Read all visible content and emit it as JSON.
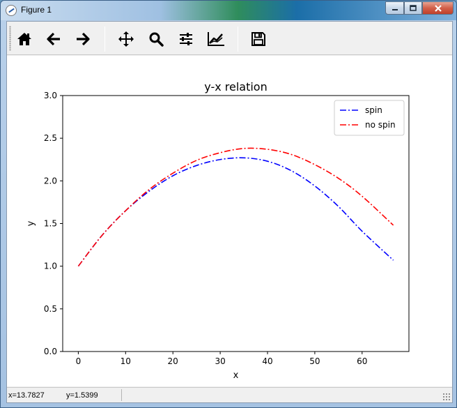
{
  "window": {
    "title": "Figure 1"
  },
  "toolbar": {
    "buttons": [
      {
        "name": "home",
        "icon": "home-icon"
      },
      {
        "name": "back",
        "icon": "arrow-left-icon"
      },
      {
        "name": "forward",
        "icon": "arrow-right-icon"
      },
      {
        "name": "pan",
        "icon": "move-icon"
      },
      {
        "name": "zoom",
        "icon": "magnifier-icon"
      },
      {
        "name": "configure-subplots",
        "icon": "sliders-icon"
      },
      {
        "name": "edit-axes",
        "icon": "line-chart-icon"
      },
      {
        "name": "save",
        "icon": "floppy-disk-icon"
      }
    ]
  },
  "status": {
    "x": "x=13.7827",
    "y": "y=1.5399"
  },
  "chart_data": {
    "type": "line",
    "title": "y-x relation",
    "xlabel": "x",
    "ylabel": "y",
    "xlim": [
      -3.3,
      69.9
    ],
    "ylim": [
      0.0,
      3.0
    ],
    "xticks": [
      "0",
      "10",
      "20",
      "30",
      "40",
      "50",
      "60"
    ],
    "yticks": [
      "0.0",
      "0.5",
      "1.0",
      "1.5",
      "2.0",
      "2.5",
      "3.0"
    ],
    "grid": false,
    "legend_position": "top-right",
    "series": [
      {
        "name": "spin",
        "color": "#0000ff",
        "style": "dash-dot",
        "x": [
          0,
          5,
          10,
          15,
          20,
          25,
          30,
          35,
          40,
          45,
          50,
          55,
          60,
          66.6
        ],
        "y": [
          1.0,
          1.36,
          1.65,
          1.88,
          2.06,
          2.18,
          2.25,
          2.27,
          2.23,
          2.12,
          1.94,
          1.7,
          1.41,
          1.07
        ]
      },
      {
        "name": "no spin",
        "color": "#ff0000",
        "style": "dash-dot",
        "x": [
          0,
          5,
          10,
          15,
          20,
          25,
          30,
          35,
          40,
          45,
          50,
          55,
          60,
          66.6
        ],
        "y": [
          1.0,
          1.36,
          1.65,
          1.9,
          2.09,
          2.24,
          2.33,
          2.38,
          2.37,
          2.31,
          2.19,
          2.03,
          1.82,
          1.48
        ]
      }
    ]
  }
}
